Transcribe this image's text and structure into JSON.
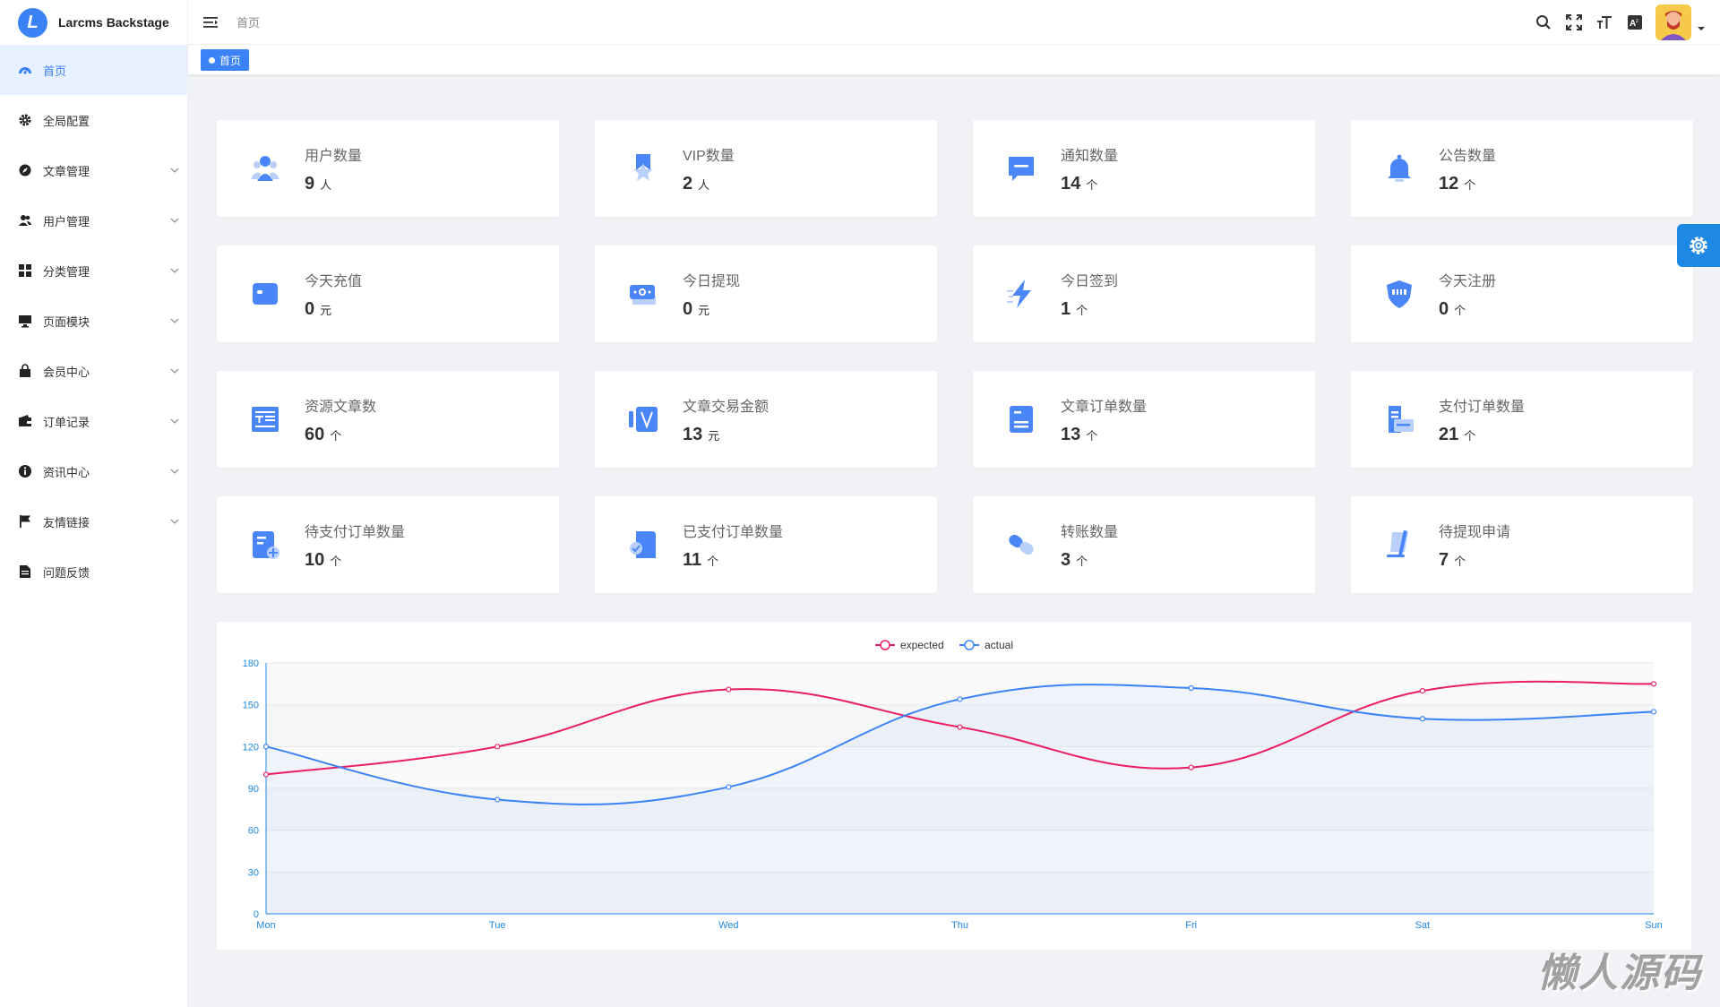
{
  "app": {
    "title": "Larcms Backstage",
    "logo_letter": "L"
  },
  "sidebar": {
    "items": [
      {
        "label": "首页",
        "icon": "dashboard-icon",
        "active": true,
        "expandable": false
      },
      {
        "label": "全局配置",
        "icon": "gear-icon",
        "expandable": false
      },
      {
        "label": "文章管理",
        "icon": "compass-icon",
        "expandable": true
      },
      {
        "label": "用户管理",
        "icon": "users-icon",
        "expandable": true
      },
      {
        "label": "分类管理",
        "icon": "grid-icon",
        "expandable": true
      },
      {
        "label": "页面模块",
        "icon": "monitor-icon",
        "expandable": true
      },
      {
        "label": "会员中心",
        "icon": "shopping-bag-icon",
        "expandable": true
      },
      {
        "label": "订单记录",
        "icon": "wallet-icon",
        "expandable": true
      },
      {
        "label": "资讯中心",
        "icon": "info-icon",
        "expandable": true
      },
      {
        "label": "友情链接",
        "icon": "flag-icon",
        "expandable": true
      },
      {
        "label": "问题反馈",
        "icon": "document-icon",
        "expandable": false
      }
    ]
  },
  "header": {
    "breadcrumb": "首页",
    "tools": [
      "search-icon",
      "fullscreen-icon",
      "font-size-icon",
      "translate-icon"
    ]
  },
  "tags": {
    "active_tag": "首页"
  },
  "cards": [
    {
      "label": "用户数量",
      "value": "9",
      "unit": "人",
      "icon": "user-group-icon"
    },
    {
      "label": "VIP数量",
      "value": "2",
      "unit": "人",
      "icon": "vip-badge-icon"
    },
    {
      "label": "通知数量",
      "value": "14",
      "unit": "个",
      "icon": "message-icon"
    },
    {
      "label": "公告数量",
      "value": "12",
      "unit": "个",
      "icon": "bell-icon"
    },
    {
      "label": "今天充值",
      "value": "0",
      "unit": "元",
      "icon": "wallet-icon"
    },
    {
      "label": "今日提现",
      "value": "0",
      "unit": "元",
      "icon": "cash-icon"
    },
    {
      "label": "今日签到",
      "value": "1",
      "unit": "个",
      "icon": "lightning-icon"
    },
    {
      "label": "今天注册",
      "value": "0",
      "unit": "个",
      "icon": "shield-icon"
    },
    {
      "label": "资源文章数",
      "value": "60",
      "unit": "个",
      "icon": "article-icon"
    },
    {
      "label": "文章交易金额",
      "value": "13",
      "unit": "元",
      "icon": "vip-card-icon"
    },
    {
      "label": "文章订单数量",
      "value": "13",
      "unit": "个",
      "icon": "order-icon"
    },
    {
      "label": "支付订单数量",
      "value": "21",
      "unit": "个",
      "icon": "payment-icon"
    },
    {
      "label": "待支付订单数量",
      "value": "10",
      "unit": "个",
      "icon": "pending-order-icon"
    },
    {
      "label": "已支付订单数量",
      "value": "11",
      "unit": "个",
      "icon": "paid-order-icon"
    },
    {
      "label": "转账数量",
      "value": "3",
      "unit": "个",
      "icon": "transfer-icon"
    },
    {
      "label": "待提现申请",
      "value": "7",
      "unit": "个",
      "icon": "withdraw-icon"
    }
  ],
  "chart_data": {
    "type": "line",
    "categories": [
      "Mon",
      "Tue",
      "Wed",
      "Thu",
      "Fri",
      "Sat",
      "Sun"
    ],
    "series": [
      {
        "name": "expected",
        "values": [
          100,
          120,
          161,
          134,
          105,
          160,
          165
        ],
        "color": "#e91e63"
      },
      {
        "name": "actual",
        "values": [
          120,
          82,
          91,
          154,
          162,
          140,
          145
        ],
        "color": "#3b82f6"
      }
    ],
    "ylim": [
      0,
      180
    ],
    "yticks": [
      0,
      30,
      60,
      90,
      120,
      150,
      180
    ],
    "smooth": true,
    "area_fill": true,
    "legend_position": "top-center",
    "grid": "horizontal"
  },
  "watermark": "懒人源码",
  "colors": {
    "accent": "#3b82f6",
    "expected": "#e91e63",
    "actual": "#3b82f6",
    "settings_button": "#1e88e5"
  }
}
